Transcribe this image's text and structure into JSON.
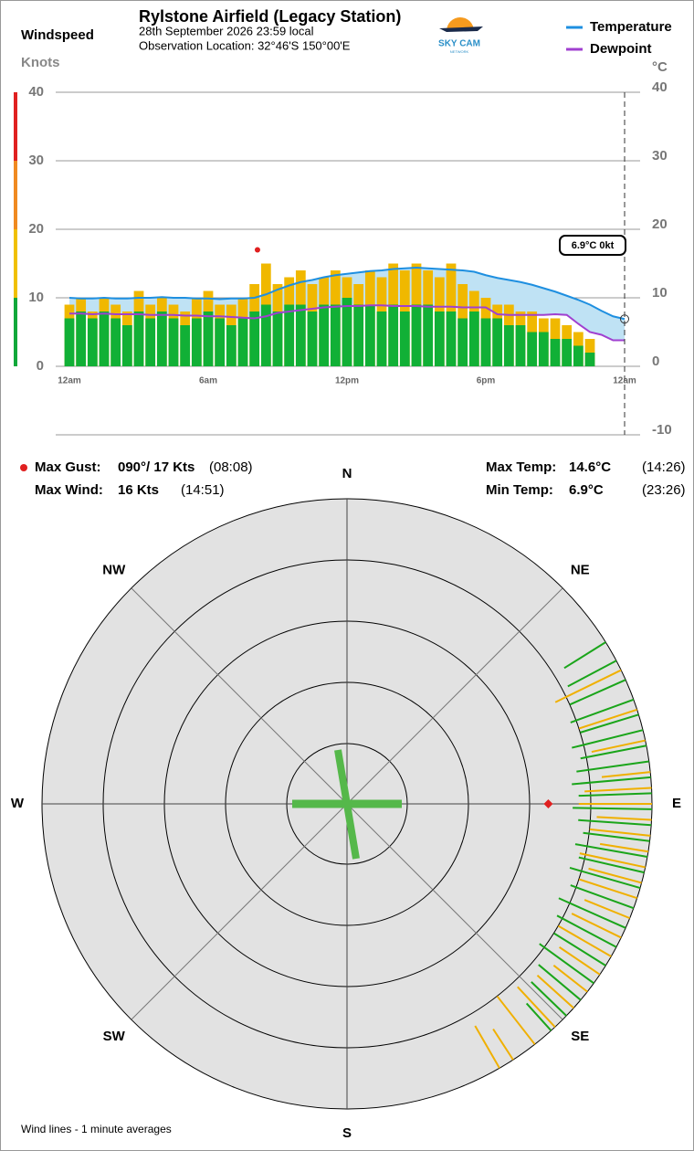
{
  "header": {
    "title": "Rylstone Airfield (Legacy Station)",
    "date": "28th September 2026  23:59 local",
    "location": "Observation Location:  32°46'S 150°00'E",
    "logo": "SKY CAM",
    "logo_sub": "NETWORK"
  },
  "stats": {
    "max_gust": {
      "label": "Max Gust:",
      "value": "090°/  17 Kts",
      "time": "(08:08)"
    },
    "max_wind": {
      "label": "Max Wind:",
      "value": "16 Kts",
      "time": "(14:51)"
    },
    "max_temp": {
      "label": "Max Temp:",
      "value": "14.6°C",
      "time": "(14:26)"
    },
    "min_temp": {
      "label": "Min Temp:",
      "value": "6.9°C",
      "time": "(23:26)"
    }
  },
  "footnote": "Wind lines - 1 minute averages",
  "chart_data": [
    {
      "type": "combo",
      "title": "Windspeed",
      "y_label": "Knots",
      "y2_label": "°C",
      "x": [
        0,
        0.5,
        1,
        1.5,
        2,
        2.5,
        3,
        3.5,
        4,
        4.5,
        5,
        5.5,
        6,
        6.5,
        7,
        7.5,
        8,
        8.5,
        9,
        9.5,
        10,
        10.5,
        11,
        11.5,
        12,
        12.5,
        13,
        13.5,
        14,
        14.5,
        15,
        15.5,
        16,
        16.5,
        17,
        17.5,
        18,
        18.5,
        19,
        19.5,
        20,
        20.5,
        21,
        21.5,
        22,
        22.5,
        23,
        23.5,
        24
      ],
      "xlim": [
        0,
        24
      ],
      "xticks": [
        {
          "value": 0,
          "label": "12am"
        },
        {
          "value": 6,
          "label": "6am"
        },
        {
          "value": 12,
          "label": "12pm"
        },
        {
          "value": 18,
          "label": "6pm"
        },
        {
          "value": 24,
          "label": "12am"
        }
      ],
      "ylim": [
        -10,
        40
      ],
      "yticks": [
        0,
        10,
        20,
        30,
        40
      ],
      "y2lim": [
        -10,
        40
      ],
      "y2ticks": [
        -10,
        0,
        10,
        20,
        30,
        40
      ],
      "grid": true,
      "bands": [
        0,
        10,
        20,
        30,
        40
      ],
      "band_colors": [
        "#11a83a",
        "#f0c000",
        "#f08a20",
        "#e02020"
      ],
      "fill_color": "#bfe2f4",
      "series": [
        {
          "color": "#f0b800",
          "values": [
            9,
            10,
            8,
            10,
            9,
            8,
            11,
            9,
            10,
            9,
            8,
            10,
            11,
            9,
            9,
            10,
            12,
            15,
            12,
            13,
            14,
            12,
            13,
            14,
            13,
            12,
            14,
            13,
            15,
            14,
            15,
            14,
            13,
            15,
            12,
            11,
            10,
            9,
            9,
            8,
            8,
            7,
            7,
            6,
            5,
            4,
            null,
            null,
            null
          ]
        },
        {
          "color": "#11b036",
          "values": [
            7,
            8,
            7,
            8,
            7,
            6,
            8,
            7,
            8,
            7,
            6,
            7,
            8,
            7,
            6,
            7,
            8,
            9,
            8,
            9,
            9,
            8,
            9,
            9,
            10,
            9,
            9,
            8,
            9,
            8,
            9,
            9,
            8,
            8,
            7,
            8,
            7,
            7,
            6,
            6,
            5,
            5,
            4,
            4,
            3,
            2,
            null,
            null,
            null
          ]
        },
        {
          "name": "Temperature",
          "color": "#1e8fe0",
          "axis": "y2",
          "values": [
            10,
            9.9,
            9.9,
            10,
            9.9,
            9.9,
            10,
            10,
            10.1,
            10,
            10,
            9.9,
            9.9,
            9.8,
            9.9,
            9.9,
            10,
            10.5,
            11.2,
            11.8,
            12.3,
            12.6,
            13,
            13.3,
            13.5,
            13.7,
            13.9,
            14,
            14.2,
            14.3,
            14.4,
            14.3,
            14.2,
            14.1,
            14,
            13.8,
            13.3,
            12.9,
            12.6,
            12.3,
            11.9,
            11.4,
            10.9,
            10.3,
            9.7,
            9,
            8.1,
            7.3,
            6.9
          ]
        },
        {
          "name": "Dewpoint",
          "color": "#a040d0",
          "axis": "y2",
          "values": [
            7.7,
            7.7,
            7.6,
            7.7,
            7.6,
            7.6,
            7.6,
            7.5,
            7.5,
            7.5,
            7.4,
            7.4,
            7.3,
            7.3,
            7.2,
            7.1,
            7,
            7.3,
            7.8,
            8,
            8.2,
            8.4,
            8.6,
            8.7,
            8.8,
            8.8,
            8.9,
            8.9,
            8.8,
            8.8,
            8.8,
            8.7,
            8.7,
            8.7,
            8.6,
            8.6,
            8.6,
            7.6,
            7.5,
            7.5,
            7.5,
            7.5,
            7.6,
            7.5,
            6.2,
            5,
            4.6,
            3.8,
            3.8
          ]
        }
      ],
      "max_gust": {
        "x": 8.13,
        "value": 17,
        "color": "#e02020"
      },
      "current_label": "6.9°C  0kt"
    },
    {
      "type": "rose",
      "rlim": [
        0,
        50
      ],
      "compass": [
        "N",
        "NE",
        "E",
        "SE",
        "S",
        "SW",
        "W",
        "NW"
      ],
      "compass_directions": [
        0,
        45,
        90,
        135,
        180,
        225,
        270,
        315
      ],
      "series": [
        {
          "color": "#1aa51a",
          "directions": [
            58,
            62,
            66,
            70,
            73,
            76,
            79,
            82,
            85,
            88,
            91,
            94,
            97,
            100,
            103,
            106,
            110,
            114,
            118,
            122,
            126,
            130,
            134,
            138
          ],
          "values": [
            8,
            9,
            10,
            11,
            10,
            12,
            11,
            12,
            13,
            12,
            13,
            12,
            11,
            12,
            11,
            12,
            11,
            12,
            11,
            10,
            11,
            9,
            8,
            6
          ]
        },
        {
          "color": "#f0b000",
          "directions": [
            64,
            72,
            78,
            84,
            87,
            90,
            93,
            96,
            99,
            102,
            105,
            108,
            112,
            116,
            120,
            124,
            128,
            132,
            137,
            142,
            147,
            150
          ],
          "values": [
            12,
            10,
            9,
            8,
            11,
            12,
            9,
            10,
            8,
            11,
            9,
            10,
            8,
            9,
            10,
            8,
            7,
            8,
            9,
            10,
            6,
            8
          ]
        }
      ],
      "max_gust": {
        "direction": 90,
        "value": 17,
        "color": "#e02020"
      }
    }
  ]
}
